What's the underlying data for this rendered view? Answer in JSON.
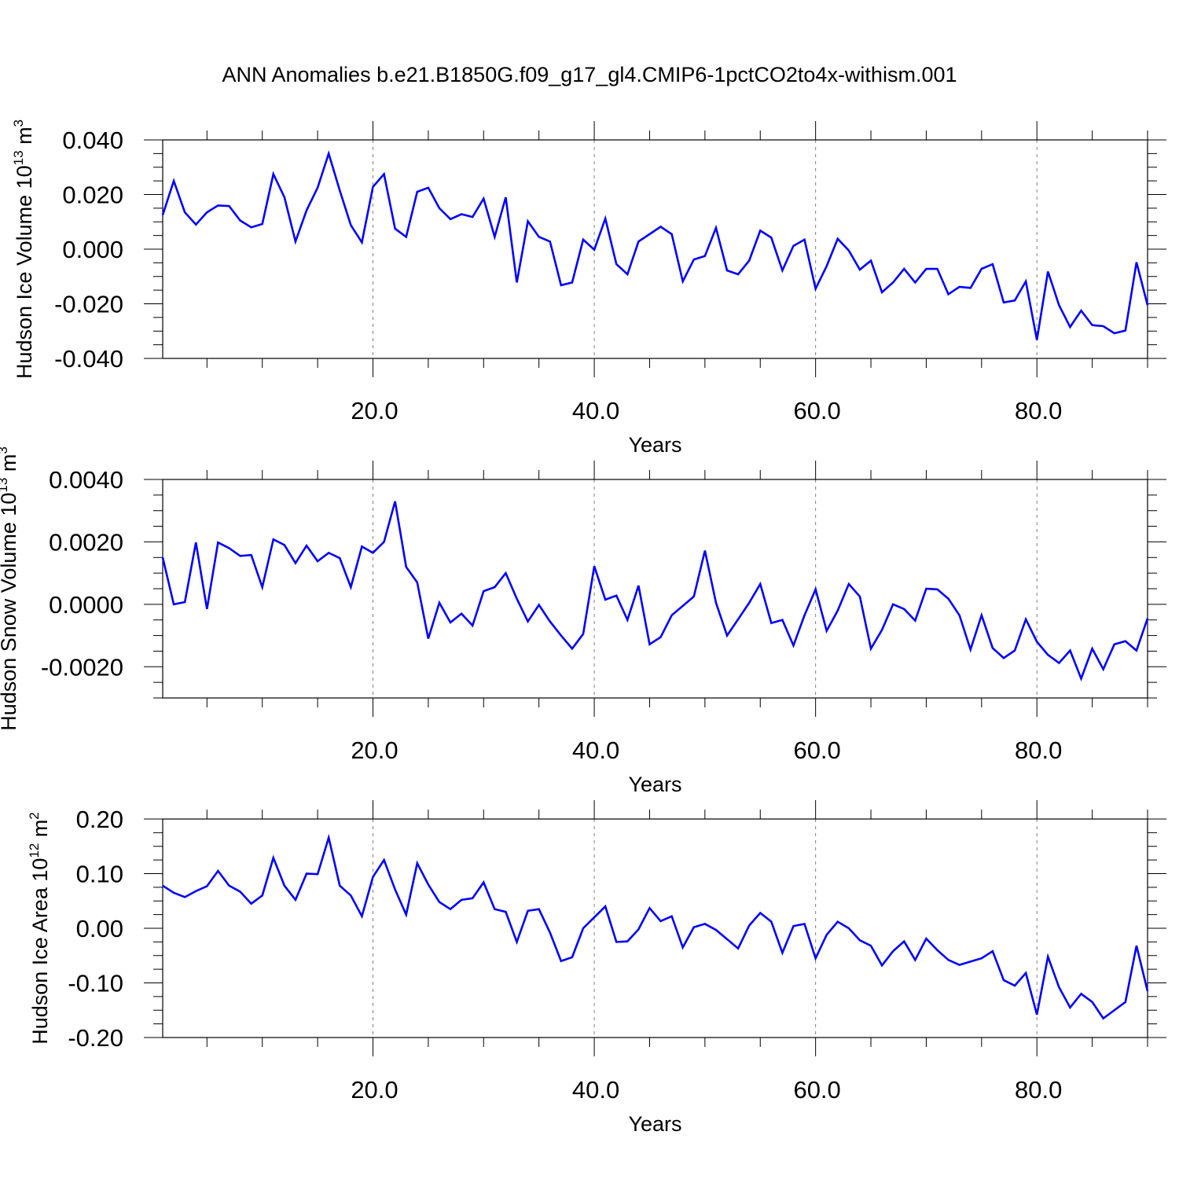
{
  "title": "ANN Anomalies b.e21.B1850G.f09_g17_gl4.CMIP6-1pctCO2to4x-withism.001",
  "colors": {
    "line": "#0000ff",
    "axis": "#000000",
    "grid": "#808080"
  },
  "chart_data": [
    {
      "type": "line",
      "ylabel_main": "Hudson Ice Volume 10",
      "ylabel_exp": "13",
      "ylabel_unit": " m",
      "ylabel_unit_exp": "3",
      "xlabel": "Years",
      "xlim": [
        1,
        90
      ],
      "ylim": [
        -0.04,
        0.04
      ],
      "yticks": [
        -0.04,
        -0.02,
        0.0,
        0.02,
        0.04
      ],
      "ytick_labels": [
        "-0.040",
        "-0.020",
        "0.000",
        "0.020",
        "0.040"
      ],
      "xticks": [
        20,
        40,
        60,
        80
      ],
      "xtick_labels": [
        "20.0",
        "40.0",
        "60.0",
        "80.0"
      ],
      "grid": "vertical dashed at major x ticks",
      "series": [
        {
          "x_start": 1,
          "values": [
            0.0125,
            0.025,
            0.0135,
            0.009,
            0.0135,
            0.016,
            0.0158,
            0.0105,
            0.008,
            0.0092,
            0.0275,
            0.019,
            0.0028,
            0.0142,
            0.0225,
            0.035,
            0.0215,
            0.0088,
            0.0025,
            0.0228,
            0.0275,
            0.0075,
            0.0045,
            0.021,
            0.0225,
            0.015,
            0.011,
            0.0128,
            0.0118,
            0.0185,
            0.0045,
            0.019,
            -0.0122,
            0.0102,
            0.0045,
            0.0028,
            -0.0132,
            -0.0122,
            0.0035,
            -0.0002,
            0.0112,
            -0.0055,
            -0.0092,
            0.0028,
            0.0055,
            0.0082,
            0.0055,
            -0.0118,
            -0.0038,
            -0.0025,
            0.0078,
            -0.0078,
            -0.0092,
            -0.0042,
            0.0068,
            0.0042,
            -0.0078,
            0.0012,
            0.0035,
            -0.0145,
            -0.0062,
            0.0038,
            -0.0005,
            -0.0075,
            -0.0042,
            -0.0158,
            -0.0122,
            -0.0072,
            -0.0122,
            -0.0072,
            -0.0072,
            -0.0165,
            -0.0138,
            -0.0142,
            -0.0072,
            -0.0055,
            -0.0195,
            -0.0188,
            -0.0118,
            -0.0332,
            -0.0082,
            -0.0205,
            -0.0285,
            -0.0225,
            -0.0278,
            -0.0282,
            -0.0308,
            -0.0298,
            -0.0048,
            -0.0205
          ]
        }
      ]
    },
    {
      "type": "line",
      "ylabel_main": "Hudson Snow Volume 10",
      "ylabel_exp": "13",
      "ylabel_unit": " m",
      "ylabel_unit_exp": "3",
      "xlabel": "Years",
      "xlim": [
        1,
        90
      ],
      "ylim": [
        -0.003,
        0.004
      ],
      "yticks": [
        -0.002,
        0.0,
        0.002,
        0.004
      ],
      "ytick_labels": [
        "-0.0020",
        "0.0000",
        "0.0020",
        "0.0040"
      ],
      "xticks": [
        20,
        40,
        60,
        80
      ],
      "xtick_labels": [
        "20.0",
        "40.0",
        "60.0",
        "80.0"
      ],
      "grid": "vertical dashed at major x ticks",
      "series": [
        {
          "x_start": 1,
          "values": [
            0.0015,
            0.0,
            7e-05,
            0.00198,
            -0.00015,
            0.00198,
            0.0018,
            0.00155,
            0.00158,
            0.00055,
            0.00208,
            0.0019,
            0.00132,
            0.00188,
            0.00138,
            0.00165,
            0.00148,
            0.00055,
            0.00185,
            0.00165,
            0.002,
            0.0033,
            0.0012,
            0.0007,
            -0.0011,
            5e-05,
            -0.00058,
            -0.0003,
            -0.00068,
            0.00042,
            0.00055,
            0.001,
            0.00018,
            -0.00055,
            -2e-05,
            -0.00055,
            -0.001,
            -0.00142,
            -0.00095,
            0.00122,
            0.00015,
            0.00028,
            -0.0005,
            0.0006,
            -0.00128,
            -0.00105,
            -0.00035,
            -5e-05,
            0.00025,
            0.00172,
            5e-05,
            -0.001,
            -0.00048,
            5e-05,
            0.00065,
            -0.0006,
            -0.0005,
            -0.00132,
            -0.00035,
            0.00048,
            -0.00085,
            -0.0002,
            0.00065,
            0.00025,
            -0.00142,
            -0.00082,
            0.0,
            -0.00015,
            -0.00052,
            0.0005,
            0.00048,
            0.00018,
            -0.00035,
            -0.00145,
            -0.00035,
            -0.0014,
            -0.00172,
            -0.00148,
            -0.00048,
            -0.0012,
            -0.00162,
            -0.00188,
            -0.00148,
            -0.00238,
            -0.00142,
            -0.00208,
            -0.00128,
            -0.00118,
            -0.00148,
            -0.00045
          ]
        }
      ]
    },
    {
      "type": "line",
      "ylabel_main": "Hudson Ice Area 10",
      "ylabel_exp": "12",
      "ylabel_unit": " m",
      "ylabel_unit_exp": "2",
      "xlabel": "Years",
      "xlim": [
        1,
        90
      ],
      "ylim": [
        -0.2,
        0.2
      ],
      "yticks": [
        -0.2,
        -0.1,
        0.0,
        0.1,
        0.2
      ],
      "ytick_labels": [
        "-0.20",
        "-0.10",
        "0.00",
        "0.10",
        "0.20"
      ],
      "xticks": [
        20,
        40,
        60,
        80
      ],
      "xtick_labels": [
        "20.0",
        "40.0",
        "60.0",
        "80.0"
      ],
      "grid": "vertical dashed at major x ticks",
      "series": [
        {
          "x_start": 1,
          "values": [
            0.078,
            0.065,
            0.057,
            0.068,
            0.077,
            0.105,
            0.078,
            0.067,
            0.045,
            0.06,
            0.129,
            0.078,
            0.052,
            0.1,
            0.099,
            0.166,
            0.078,
            0.06,
            0.022,
            0.094,
            0.125,
            0.071,
            0.025,
            0.119,
            0.08,
            0.048,
            0.035,
            0.052,
            0.055,
            0.084,
            0.035,
            0.03,
            -0.025,
            0.032,
            0.035,
            -0.008,
            -0.06,
            -0.053,
            0.0,
            0.02,
            0.04,
            -0.025,
            -0.024,
            -0.002,
            0.037,
            0.013,
            0.022,
            -0.035,
            0.002,
            0.008,
            -0.003,
            -0.02,
            -0.037,
            0.005,
            0.028,
            0.012,
            -0.045,
            0.004,
            0.008,
            -0.055,
            -0.012,
            0.012,
            0.0,
            -0.022,
            -0.032,
            -0.068,
            -0.042,
            -0.024,
            -0.058,
            -0.019,
            -0.04,
            -0.058,
            -0.067,
            -0.061,
            -0.055,
            -0.042,
            -0.095,
            -0.105,
            -0.082,
            -0.158,
            -0.052,
            -0.108,
            -0.145,
            -0.12,
            -0.135,
            -0.165,
            -0.15,
            -0.135,
            -0.032,
            -0.115
          ]
        }
      ]
    }
  ]
}
